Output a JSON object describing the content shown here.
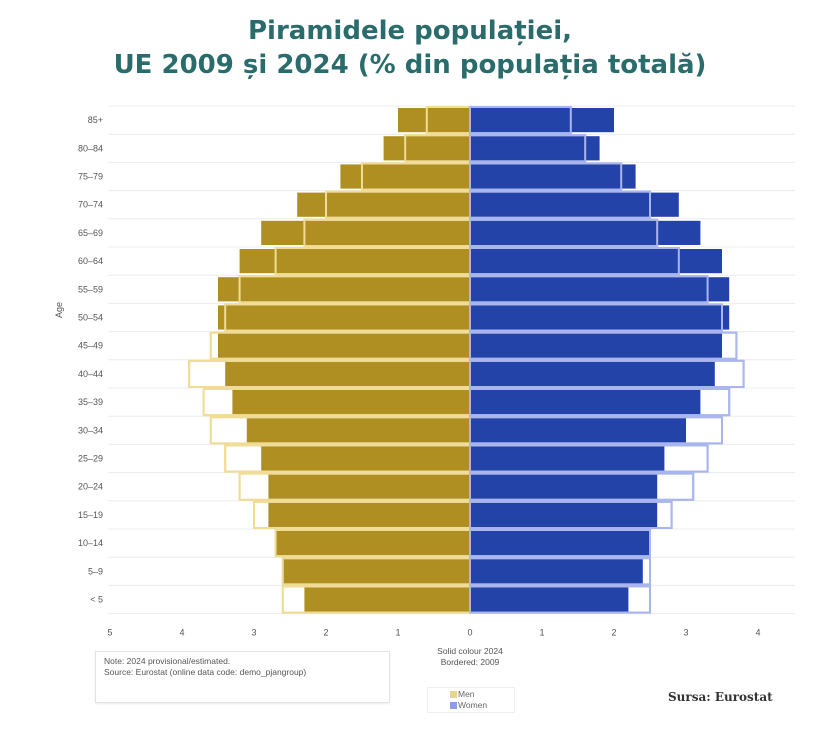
{
  "chart_data": {
    "type": "bar",
    "subtype": "population-pyramid",
    "title": [
      "Piramidele populației,",
      "UE 2009 și 2024 (% din populația totală)"
    ],
    "ylabel": "Age",
    "xlabel": "",
    "categories": [
      "85+",
      "80–84",
      "75–79",
      "70–74",
      "65–69",
      "60–64",
      "55–59",
      "50–54",
      "45–49",
      "40–44",
      "35–39",
      "30–34",
      "25–29",
      "20–24",
      "15–19",
      "10–14",
      "5–9",
      "< 5"
    ],
    "series": [
      {
        "name": "Men 2024",
        "style": "solid",
        "side": "left",
        "color": "#b08f22",
        "values": [
          1.0,
          1.2,
          1.8,
          2.4,
          2.9,
          3.2,
          3.5,
          3.5,
          3.5,
          3.4,
          3.3,
          3.1,
          2.9,
          2.8,
          2.8,
          2.7,
          2.6,
          2.3
        ]
      },
      {
        "name": "Men 2009",
        "style": "bordered",
        "side": "left",
        "color": "#f0dc96",
        "values": [
          0.6,
          0.9,
          1.5,
          2.0,
          2.3,
          2.7,
          3.2,
          3.4,
          3.6,
          3.9,
          3.7,
          3.6,
          3.4,
          3.2,
          3.0,
          2.7,
          2.6,
          2.6
        ]
      },
      {
        "name": "Women 2024",
        "style": "solid",
        "side": "right",
        "color": "#2443a8",
        "values": [
          2.0,
          1.8,
          2.3,
          2.9,
          3.2,
          3.5,
          3.6,
          3.6,
          3.5,
          3.4,
          3.2,
          3.0,
          2.7,
          2.6,
          2.6,
          2.5,
          2.4,
          2.2
        ]
      },
      {
        "name": "Women 2009",
        "style": "bordered",
        "side": "right",
        "color": "#a9b6ee",
        "values": [
          1.4,
          1.6,
          2.1,
          2.5,
          2.6,
          2.9,
          3.3,
          3.5,
          3.7,
          3.8,
          3.6,
          3.5,
          3.3,
          3.1,
          2.8,
          2.5,
          2.5,
          2.5
        ]
      }
    ],
    "xticks_left": [
      "5",
      "4",
      "3",
      "2",
      "1",
      "0"
    ],
    "xticks_right": [
      "1",
      "2",
      "3",
      "4"
    ],
    "xlim_left": [
      0,
      5
    ],
    "xlim_right": [
      0,
      4.5
    ],
    "grid": true,
    "caption": [
      "Solid colour 2024",
      "Bordered: 2009"
    ],
    "legend": {
      "placement": "bottom-center",
      "entries": [
        {
          "label": "Men",
          "color": "#e8d58a"
        },
        {
          "label": "Women",
          "color": "#8e9ee6"
        }
      ]
    },
    "note": [
      "Note: 2024 provisional/estimated.",
      "Source: Eurostat (online data code: demo_pjangroup)"
    ]
  },
  "source_label": "Sursa: Eurostat"
}
